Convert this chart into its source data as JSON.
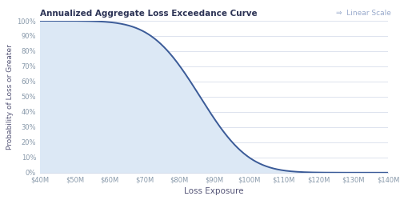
{
  "title": "Annualized Aggregate Loss Exceedance Curve",
  "xlabel": "Loss Exposure",
  "ylabel": "Probability of Loss or Greater",
  "top_right_text": "⇒  Linear Scale",
  "x_tick_labels": [
    "$40M",
    "$50M",
    "$60M",
    "$70M",
    "$80M",
    "$90M",
    "$100M",
    "$110M",
    "$120M",
    "$130M",
    "$140M"
  ],
  "x_min": 40,
  "x_max": 140,
  "y_ticks": [
    0,
    10,
    20,
    30,
    40,
    50,
    60,
    70,
    80,
    90,
    100
  ],
  "y_tick_labels": [
    "0%",
    "10%",
    "20%",
    "30%",
    "40%",
    "50%",
    "60%",
    "70%",
    "80%",
    "90%",
    "100%"
  ],
  "curve_color": "#3b5b98",
  "fill_color": "#dce8f5",
  "background_color": "#ffffff",
  "grid_color": "#d0d8e8",
  "title_color": "#2c3355",
  "axis_label_color": "#555577",
  "tick_label_color": "#8899aa",
  "top_right_color": "#99aacc",
  "curve_mean": 86,
  "curve_std": 11,
  "figsize": [
    5.0,
    2.6
  ],
  "dpi": 100,
  "title_fontsize": 7.5,
  "tick_fontsize": 6.0,
  "xlabel_fontsize": 7.5,
  "ylabel_fontsize": 6.5,
  "top_right_fontsize": 6.5,
  "linewidth": 1.4
}
